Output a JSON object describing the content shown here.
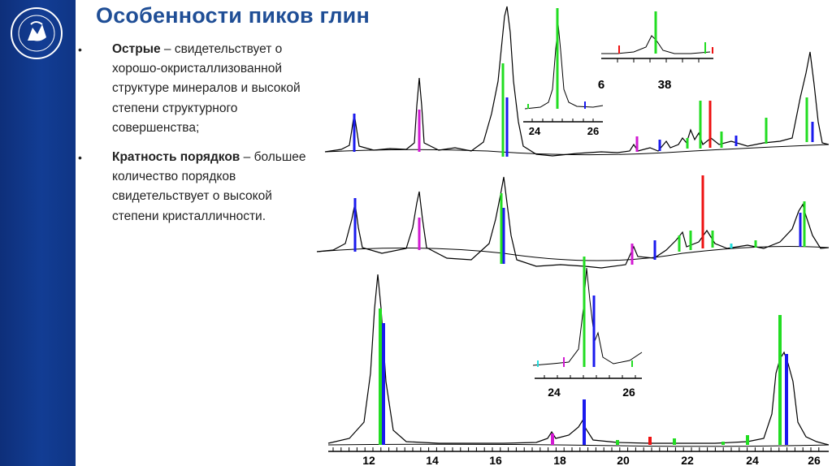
{
  "slide": {
    "title": "Особенности пиков глин",
    "bullets": [
      {
        "bold": "Острые",
        "text": " – свидетельствует о хорошо-окристаллизованной структуре минералов и высокой степени структурного совершенства;"
      },
      {
        "bold": "Кратность порядков",
        "text": " – большее количество порядков свидетельствует о высокой степени кристалличности."
      }
    ]
  },
  "figure": {
    "x_axis_ticks": [
      "12",
      "14",
      "16",
      "18",
      "20",
      "22",
      "24",
      "26"
    ],
    "inset_top_ticks": [
      "24",
      "26"
    ],
    "inset_right_ticks": [
      "6",
      "38"
    ],
    "inset_bottom_ticks": [
      "24",
      "26"
    ],
    "colors": {
      "green": "#22dd22",
      "blue": "#1a1aee",
      "magenta": "#d21ad2",
      "red": "#ee1111",
      "cyan": "#22dddd",
      "curve": "#000000"
    }
  },
  "icons": {
    "logo": "university-emblem-icon"
  }
}
